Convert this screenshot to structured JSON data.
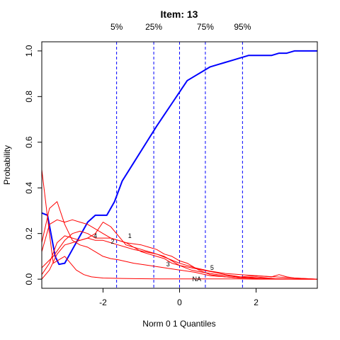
{
  "chart_data": {
    "type": "line",
    "title": "Item:  13",
    "xlabel": "Norm 0 1 Quantiles",
    "ylabel": "Probability",
    "xlim": [
      -3.6,
      3.6
    ],
    "ylim": [
      0.0,
      1.0
    ],
    "x_ticks": [
      -2,
      0,
      2
    ],
    "y_ticks": [
      0.0,
      0.2,
      0.4,
      0.6,
      0.8,
      1.0
    ],
    "x_tick_labels": [
      "-2",
      "0",
      "2"
    ],
    "y_tick_labels": [
      "0.0",
      "0.2",
      "0.4",
      "0.6",
      "0.8",
      "1.0"
    ],
    "grid": false,
    "quantiles": [
      {
        "label": "5%",
        "x": -1.645
      },
      {
        "label": "25%",
        "x": -0.674
      },
      {
        "label": "",
        "x": 0.0
      },
      {
        "label": "75%",
        "x": 0.674
      },
      {
        "label": "95%",
        "x": 1.645
      }
    ],
    "colors": {
      "key": "#0000ff",
      "distractor": "#ff0000",
      "quantile": "#0000ff",
      "axis": "#000000"
    },
    "series": [
      {
        "role": "key",
        "x": [
          -3.6,
          -3.45,
          -3.25,
          -3.15,
          -3.0,
          -2.8,
          -2.6,
          -2.4,
          -2.2,
          -2.05,
          -1.9,
          -1.7,
          -1.5,
          -1.2,
          -0.9,
          -0.6,
          -0.4,
          -0.2,
          0.0,
          0.2,
          0.4,
          0.6,
          0.8,
          1.0,
          1.2,
          1.4,
          1.6,
          1.8,
          2.0,
          2.2,
          2.4,
          2.6,
          2.8,
          3.0,
          3.2,
          3.6
        ],
        "y": [
          0.29,
          0.28,
          0.1,
          0.065,
          0.07,
          0.13,
          0.19,
          0.25,
          0.28,
          0.28,
          0.28,
          0.34,
          0.43,
          0.51,
          0.59,
          0.67,
          0.72,
          0.77,
          0.82,
          0.87,
          0.89,
          0.91,
          0.93,
          0.94,
          0.95,
          0.96,
          0.97,
          0.98,
          0.98,
          0.98,
          0.98,
          0.99,
          0.99,
          1.0,
          1.0,
          1.0
        ]
      },
      {
        "role": "distractor",
        "label": "1",
        "x": [
          -3.6,
          -3.3,
          -3.0,
          -2.8,
          -2.6,
          -2.4,
          -2.2,
          -2.0,
          -1.8,
          -1.6,
          -1.4,
          -1.2,
          -1.0,
          -0.8,
          -0.6,
          -0.4,
          -0.2,
          0.0,
          0.2,
          0.5,
          0.8,
          1.2,
          1.6,
          2.0,
          2.5,
          3.0,
          3.6
        ],
        "y": [
          0.05,
          0.1,
          0.17,
          0.2,
          0.21,
          0.2,
          0.18,
          0.18,
          0.18,
          0.17,
          0.16,
          0.155,
          0.15,
          0.14,
          0.13,
          0.11,
          0.1,
          0.08,
          0.07,
          0.04,
          0.02,
          0.01,
          0.005,
          0.01,
          0.002,
          0.0,
          0.0
        ]
      },
      {
        "role": "distractor",
        "label": "2",
        "x": [
          -3.6,
          -3.4,
          -3.2,
          -3.0,
          -2.8,
          -2.6,
          -2.4,
          -2.2,
          -2.0,
          -1.8,
          -1.6,
          -1.4,
          -1.2,
          -1.0,
          -0.8,
          -0.6,
          -0.4,
          -0.2,
          0.0,
          0.3,
          0.6,
          1.0,
          1.5,
          2.0,
          2.5,
          3.0,
          3.6
        ],
        "y": [
          0.12,
          0.24,
          0.26,
          0.25,
          0.26,
          0.25,
          0.24,
          0.22,
          0.2,
          0.18,
          0.17,
          0.16,
          0.14,
          0.12,
          0.11,
          0.1,
          0.09,
          0.07,
          0.06,
          0.04,
          0.03,
          0.02,
          0.01,
          0.005,
          0.002,
          0.001,
          0.0
        ]
      },
      {
        "role": "distractor",
        "label": "3",
        "x": [
          -3.6,
          -3.4,
          -3.2,
          -3.0,
          -2.8,
          -2.6,
          -2.4,
          -2.2,
          -2.0,
          -1.8,
          -1.6,
          -1.4,
          -1.2,
          -1.0,
          -0.8,
          -0.6,
          -0.4,
          -0.2,
          0.0,
          0.3,
          0.6,
          0.9,
          1.2,
          1.6,
          2.0,
          2.5,
          3.0,
          3.6
        ],
        "y": [
          0.0,
          0.04,
          0.11,
          0.15,
          0.16,
          0.17,
          0.18,
          0.2,
          0.25,
          0.23,
          0.19,
          0.15,
          0.14,
          0.13,
          0.12,
          0.11,
          0.1,
          0.08,
          0.06,
          0.05,
          0.04,
          0.03,
          0.02,
          0.01,
          0.015,
          0.01,
          0.005,
          0.0
        ]
      },
      {
        "role": "distractor",
        "label": "4",
        "x": [
          -3.6,
          -3.4,
          -3.2,
          -3.0,
          -2.8,
          -2.6,
          -2.4,
          -2.2,
          -2.0,
          -1.8,
          -1.6,
          -1.4,
          -1.2,
          -0.9,
          -0.6,
          -0.3,
          0.0,
          0.4,
          0.8,
          1.2,
          1.6,
          2.0,
          2.4,
          2.6,
          2.8,
          3.0,
          3.6
        ],
        "y": [
          0.02,
          0.07,
          0.16,
          0.19,
          0.18,
          0.17,
          0.18,
          0.17,
          0.17,
          0.16,
          0.15,
          0.14,
          0.13,
          0.12,
          0.11,
          0.09,
          0.07,
          0.05,
          0.035,
          0.025,
          0.02,
          0.015,
          0.01,
          0.02,
          0.01,
          0.005,
          0.0
        ]
      },
      {
        "role": "distractor",
        "label": "5",
        "x": [
          -3.6,
          -3.4,
          -3.3,
          -3.2,
          -3.1,
          -3.0,
          -2.9,
          -2.7,
          -2.5,
          -2.3,
          -2.0,
          -1.5,
          -1.0,
          -0.5,
          0.0,
          0.5,
          1.0,
          1.5,
          2.0,
          2.5,
          3.0,
          3.6
        ],
        "y": [
          0.48,
          0.2,
          0.07,
          0.08,
          0.09,
          0.1,
          0.08,
          0.04,
          0.02,
          0.01,
          0.005,
          0.003,
          0.002,
          0.001,
          0.001,
          0.001,
          0.001,
          0.001,
          0.0,
          0.0,
          0.0,
          0.0
        ]
      },
      {
        "role": "distractor",
        "label": "NA",
        "x": [
          -3.6,
          -3.4,
          -3.2,
          -3.0,
          -2.8,
          -2.6,
          -2.4,
          -2.2,
          -2.0,
          -1.8,
          -1.6,
          -1.2,
          -0.8,
          -0.4,
          0.0,
          0.4,
          0.8,
          1.2,
          1.6,
          2.0,
          2.5,
          3.0,
          3.6
        ],
        "y": [
          0.16,
          0.31,
          0.34,
          0.24,
          0.17,
          0.15,
          0.14,
          0.12,
          0.1,
          0.09,
          0.085,
          0.07,
          0.06,
          0.05,
          0.04,
          0.03,
          0.015,
          0.01,
          0.005,
          0.003,
          0.001,
          0.0,
          0.0
        ]
      }
    ],
    "curve_labels": [
      {
        "text": "1",
        "x": -1.3,
        "y": 0.19
      },
      {
        "text": "2",
        "x": -1.75,
        "y": 0.165
      },
      {
        "text": "3",
        "x": -0.3,
        "y": 0.065
      },
      {
        "text": "4",
        "x": -2.2,
        "y": 0.19
      },
      {
        "text": "5",
        "x": 0.85,
        "y": 0.05
      },
      {
        "text": "NA",
        "x": 0.45,
        "y": 0.0
      }
    ]
  }
}
